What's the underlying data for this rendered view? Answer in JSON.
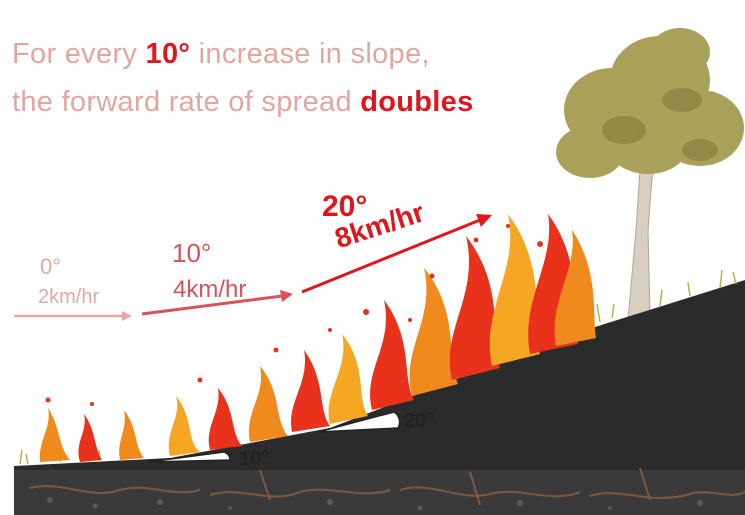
{
  "headline": {
    "line1_prefix": "For every ",
    "line1_emphasis": "10°",
    "line1_suffix": " increase in slope,",
    "line2_prefix": "the forward rate of spread ",
    "line2_emphasis": "doubles"
  },
  "spread_rates": [
    {
      "slope": "0°",
      "speed": "2km/hr"
    },
    {
      "slope": "10°",
      "speed": "4km/hr"
    },
    {
      "slope": "20°",
      "speed": "8km/hr"
    }
  ],
  "slope_angles": [
    "10°",
    "20°"
  ],
  "colors": {
    "headline_pink": "#e2a6a0",
    "emphasis_red": "#e0151d",
    "arrow_light": "#e3a8a2",
    "arrow_mid": "#d6525c",
    "arrow_strong": "#e0151d",
    "ground": "#2b2b2b",
    "tree_foliage": "#a9a15a",
    "flame_orange": "#f08a1c"
  }
}
